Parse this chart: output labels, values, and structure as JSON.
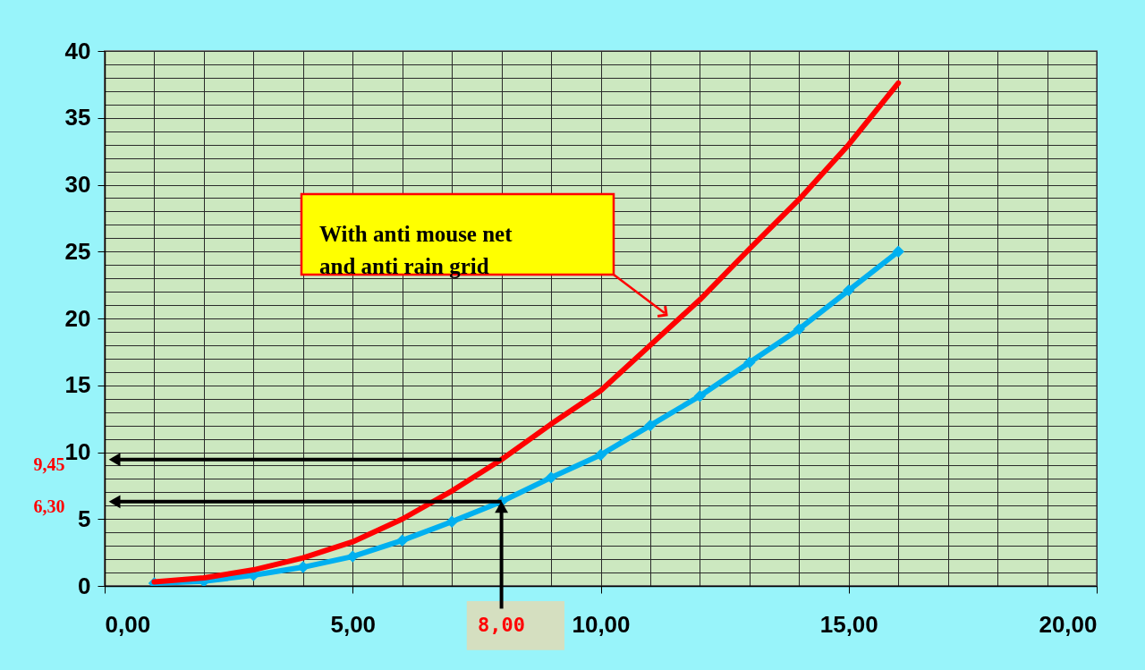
{
  "chart_data": {
    "type": "line",
    "x": [
      1,
      2,
      3,
      4,
      5,
      6,
      7,
      8,
      9,
      10,
      11,
      12,
      13,
      14,
      15,
      16
    ],
    "series": [
      {
        "color": "#00b0f0",
        "marker": "diamond",
        "values": [
          0.2,
          0.35,
          0.8,
          1.4,
          2.2,
          3.4,
          4.8,
          6.3,
          8.1,
          9.8,
          12.0,
          14.2,
          16.7,
          19.2,
          22.1,
          25.0
        ]
      },
      {
        "color": "#ff0000",
        "marker": "none",
        "values": [
          0.3,
          0.6,
          1.2,
          2.1,
          3.3,
          5.0,
          7.1,
          9.45,
          12.1,
          14.6,
          18.0,
          21.4,
          25.2,
          28.9,
          33.0,
          37.6
        ]
      }
    ],
    "xlim": [
      0,
      20
    ],
    "xticks": [
      {
        "value": 0,
        "label": "0,00"
      },
      {
        "value": 1,
        "label": null
      },
      {
        "value": 2,
        "label": null
      },
      {
        "value": 3,
        "label": null
      },
      {
        "value": 4,
        "label": null
      },
      {
        "value": 5,
        "label": "5,00"
      },
      {
        "value": 6,
        "label": null
      },
      {
        "value": 7,
        "label": null
      },
      {
        "value": 8,
        "label": null
      },
      {
        "value": 9,
        "label": null
      },
      {
        "value": 10,
        "label": "10,00"
      },
      {
        "value": 11,
        "label": null
      },
      {
        "value": 12,
        "label": null
      },
      {
        "value": 13,
        "label": null
      },
      {
        "value": 14,
        "label": null
      },
      {
        "value": 15,
        "label": "15,00"
      },
      {
        "value": 16,
        "label": null
      },
      {
        "value": 17,
        "label": null
      },
      {
        "value": 18,
        "label": null
      },
      {
        "value": 19,
        "label": null
      },
      {
        "value": 20,
        "label": "20,00"
      }
    ],
    "ylim": [
      0,
      40
    ],
    "yticks": [
      0,
      {
        "value": 1,
        "label": null
      },
      {
        "value": 2,
        "label": null
      },
      {
        "value": 3,
        "label": null
      },
      {
        "value": 4,
        "label": null
      },
      5,
      {
        "value": 6,
        "label": null
      },
      {
        "value": 7,
        "label": null
      },
      {
        "value": 8,
        "label": null
      },
      {
        "value": 9,
        "label": null
      },
      10,
      {
        "value": 11,
        "label": null
      },
      {
        "value": 12,
        "label": null
      },
      {
        "value": 13,
        "label": null
      },
      {
        "value": 14,
        "label": null
      },
      15,
      {
        "value": 16,
        "label": null
      },
      {
        "value": 17,
        "label": null
      },
      {
        "value": 18,
        "label": null
      },
      {
        "value": 19,
        "label": null
      },
      20,
      {
        "value": 21,
        "label": null
      },
      {
        "value": 22,
        "label": null
      },
      {
        "value": 23,
        "label": null
      },
      {
        "value": 24,
        "label": null
      },
      25,
      {
        "value": 26,
        "label": null
      },
      {
        "value": 27,
        "label": null
      },
      {
        "value": 28,
        "label": null
      },
      {
        "value": 29,
        "label": null
      },
      30,
      {
        "value": 31,
        "label": null
      },
      {
        "value": 32,
        "label": null
      },
      {
        "value": 33,
        "label": null
      },
      {
        "value": 34,
        "label": null
      },
      35,
      {
        "value": 36,
        "label": null
      },
      {
        "value": 37,
        "label": null
      },
      {
        "value": 38,
        "label": null
      },
      {
        "value": 39,
        "label": null
      },
      40
    ],
    "grid": true,
    "line_style": "solid",
    "ref_lines": [
      {
        "axis": "y",
        "value": 9.45,
        "label": "9,45",
        "color": "#000000"
      },
      {
        "axis": "y",
        "value": 6.3,
        "label": "6,30",
        "color": "#000000"
      },
      {
        "axis": "x",
        "value": 8,
        "label": "8,00",
        "color": "#000000"
      }
    ],
    "annotations": [
      "With anti mouse net\nand anti rain grid"
    ]
  }
}
